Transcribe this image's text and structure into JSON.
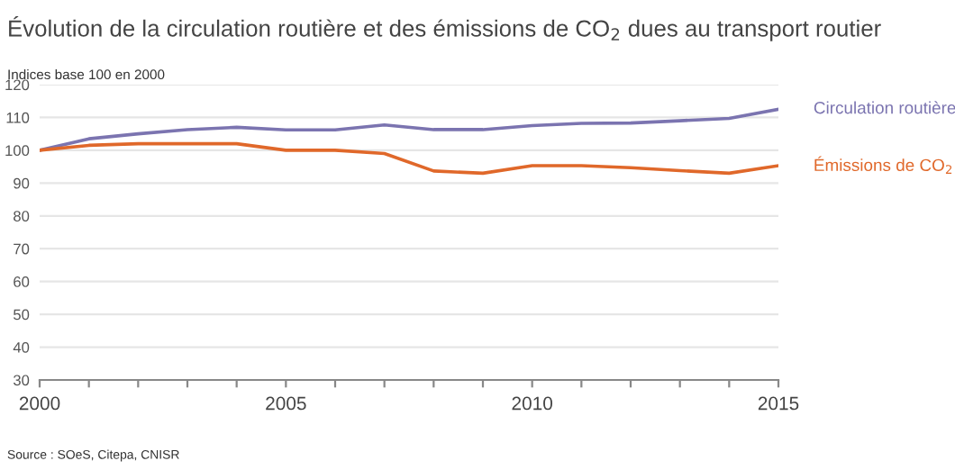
{
  "chart_data": {
    "type": "line",
    "title": "Évolution de la circulation routière et des émissions de CO$_{2}$ dues au transport routier",
    "subtitle": "Indices base 100 en 2000",
    "x": [
      2000,
      2001,
      2002,
      2003,
      2004,
      2005,
      2006,
      2007,
      2008,
      2009,
      2010,
      2011,
      2012,
      2013,
      2014,
      2015
    ],
    "series": [
      {
        "name": "Circulation routière",
        "color": "#7b74b0",
        "values": [
          100,
          103.5,
          105,
          106.3,
          107,
          106.2,
          106.2,
          107.7,
          106.3,
          106.3,
          107.5,
          108.2,
          108.3,
          109,
          109.7,
          112.5
        ]
      },
      {
        "name": "Émissions de CO$_{2}$",
        "color": "#e0682a",
        "values": [
          100,
          101.5,
          102,
          102,
          102,
          100,
          100,
          99,
          93.7,
          93,
          95.3,
          95.3,
          94.7,
          93.8,
          93,
          95.3
        ]
      }
    ],
    "xlim": [
      2000,
      2015
    ],
    "xticks": [
      2000,
      {
        "value": 2001,
        "label": null
      },
      {
        "value": 2002,
        "label": null
      },
      {
        "value": 2003,
        "label": null
      },
      {
        "value": 2004,
        "label": null
      },
      2005,
      {
        "value": 2006,
        "label": null
      },
      {
        "value": 2007,
        "label": null
      },
      {
        "value": 2008,
        "label": null
      },
      {
        "value": 2009,
        "label": null
      },
      2010,
      {
        "value": 2011,
        "label": null
      },
      {
        "value": 2012,
        "label": null
      },
      {
        "value": 2013,
        "label": null
      },
      {
        "value": 2014,
        "label": null
      },
      2015
    ],
    "ylim": [
      30,
      120
    ],
    "yticks": [
      30,
      40,
      50,
      60,
      70,
      80,
      90,
      100,
      110,
      120
    ],
    "grid": "y",
    "legend": false,
    "annotations": [
      "Source : SOeS, Citepa, CNISR"
    ]
  }
}
